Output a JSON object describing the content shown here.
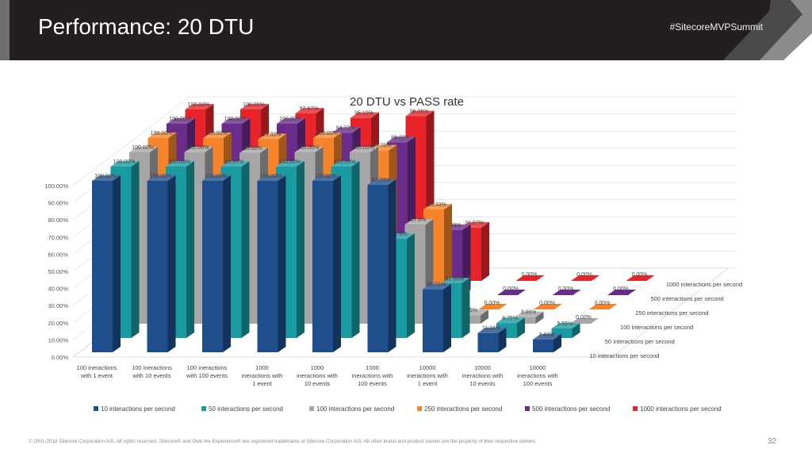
{
  "header": {
    "title": "Performance: 20 DTU",
    "hashtag": "#SitecoreMVPSummit"
  },
  "footer": {
    "copyright": "© 2001-2018 Sitecore Corporation A/S. All rights reserved. Sitecore® and Own the Experience® are registered trademarks of Sitecore Corporation A/S. All other brand and product names are the property of their respective owners.",
    "page_number": "32"
  },
  "colors": {
    "header_bg": "#231f20",
    "accent_gray": "#6e6e6e"
  },
  "chart_data": {
    "type": "bar",
    "subtype": "3d-column",
    "title": "20 DTU vs PASS rate",
    "xlabel": "",
    "ylabel": "",
    "ylim": [
      0,
      100
    ],
    "y_ticks": [
      "0.00%",
      "10.00%",
      "20.00%",
      "30.00%",
      "40.00%",
      "50.00%",
      "60.00%",
      "70.00%",
      "80.00%",
      "90.00%",
      "100.00%"
    ],
    "grid": true,
    "legend_position": "bottom",
    "categories": [
      [
        "100 ineractions",
        "with 1 event"
      ],
      [
        "100 ineractions",
        "with 10 events"
      ],
      [
        "100 ineractions",
        "with 100 events"
      ],
      [
        "1000",
        "ineractions with",
        "1 event"
      ],
      [
        "1000",
        "ineractions with",
        "10 events"
      ],
      [
        "1000",
        "ineractions with",
        "100 events"
      ],
      [
        "10000",
        "ineractions with",
        "1 event"
      ],
      [
        "10000",
        "ineractions with",
        "10 events"
      ],
      [
        "10000",
        "ineractions with",
        "100 events"
      ]
    ],
    "series": [
      {
        "name": "10 interactions per second",
        "color": "#1f4e8c",
        "values": [
          100,
          100,
          100,
          100,
          100,
          97.72,
          36.71,
          11.24,
          7.49
        ],
        "labels": [
          "100.00%",
          "100.00%",
          "100.00%",
          "100.00%",
          "100.00%",
          "97.72%",
          "36.71%",
          "11.24%",
          "7.49%"
        ]
      },
      {
        "name": "50 interactions per second",
        "color": "#1a9ba1",
        "values": [
          100,
          100,
          99.97,
          100,
          100,
          57.8,
          31.8,
          8.75,
          5.55
        ],
        "labels": [
          "100.00%",
          "100.00%",
          "99.97%",
          "100.00%",
          "100.00%",
          "57.8%",
          "31.80%",
          "8.75%",
          "5.55%"
        ]
      },
      {
        "name": "100 interactions per second",
        "color": "#a6a6a6",
        "values": [
          100,
          100,
          99.6,
          100,
          100,
          57.8,
          5,
          3.86,
          0
        ],
        "labels": [
          "100.00%",
          "100.00%",
          "99.60%",
          "100.00%",
          "100.00%",
          "57.8%",
          "5%",
          "3.86%",
          "0.00%"
        ]
      },
      {
        "name": "250 interactions per second",
        "color": "#f5842a",
        "values": [
          100,
          100,
          99.33,
          100,
          92.78,
          58.33,
          0,
          0,
          0
        ],
        "labels": [
          "100.00%",
          "100.00%",
          "99.33%",
          "100.00%",
          "92.78%",
          "58.33%",
          "0.00%",
          "0.00%",
          "0.00%"
        ]
      },
      {
        "name": "500 interactions per second",
        "color": "#6a2c8a",
        "values": [
          100,
          100,
          100,
          94.72,
          89.22,
          38,
          0,
          0,
          0
        ],
        "labels": [
          "100.00%",
          "100.00%",
          "100.00%",
          "94.72%",
          "89.22%",
          "38%",
          "0.00%",
          "0.00%",
          "0.00%"
        ]
      },
      {
        "name": "1000 interactions per second",
        "color": "#e8232a",
        "values": [
          100,
          100,
          97.67,
          95.1,
          96.06,
          31.07,
          0,
          0,
          0
        ],
        "labels": [
          "100.00%",
          "100.00%",
          "97.67%",
          "95.10%",
          "96.06%",
          "31.07%",
          "0.00%",
          "0.00%",
          "0.00%"
        ]
      }
    ]
  }
}
